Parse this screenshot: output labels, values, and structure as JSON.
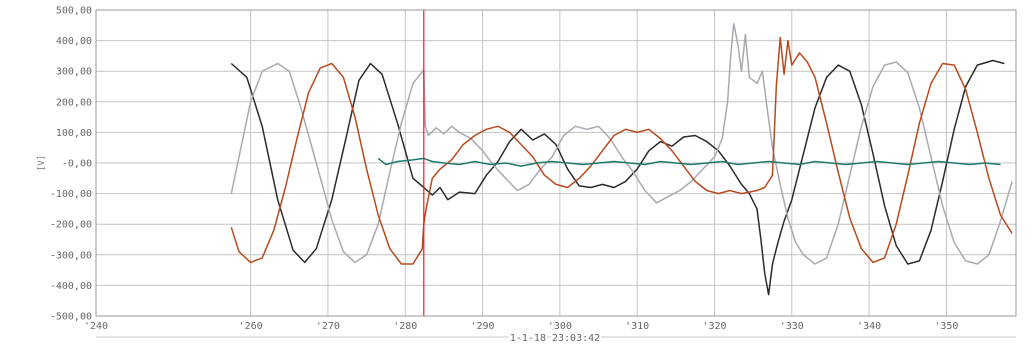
{
  "chart_data": {
    "type": "line",
    "title": "",
    "xlabel": "",
    "ylabel": "[V]",
    "timestamp": "1-1-18 23:03:42",
    "xlim": [
      240,
      359
    ],
    "ylim": [
      -500,
      500
    ],
    "grid": true,
    "x_ticks": [
      240,
      260,
      270,
      280,
      290,
      300,
      310,
      320,
      330,
      340,
      350
    ],
    "x_tick_labels": [
      "'240",
      "'260",
      "'270",
      "'280",
      "'290",
      "'300",
      "'310",
      "'320",
      "'330",
      "'340",
      "'350"
    ],
    "y_ticks": [
      500,
      400,
      300,
      200,
      100,
      0,
      -100,
      -200,
      -300,
      -400,
      -500
    ],
    "y_tick_labels": [
      "500,00",
      "400,00",
      "300,00",
      "200,00",
      "100,00",
      "-0,00",
      "-100,00",
      "-200,00",
      "-300,00",
      "-400,00",
      "-500,00"
    ],
    "cursor_x": 282.4,
    "colors": {
      "cursor": "#e02020",
      "grid": "#c4c4c4",
      "axis": "#909090",
      "background": "#ffffff"
    },
    "series": [
      {
        "color": "#2b2b2b",
        "points": [
          [
            257.5,
            325
          ],
          [
            259.5,
            280
          ],
          [
            261.5,
            120
          ],
          [
            263.5,
            -120
          ],
          [
            265.5,
            -285
          ],
          [
            267,
            -325
          ],
          [
            268.5,
            -280
          ],
          [
            270.5,
            -120
          ],
          [
            272.5,
            100
          ],
          [
            274,
            270
          ],
          [
            275.5,
            325
          ],
          [
            277,
            290
          ],
          [
            279,
            130
          ],
          [
            281,
            -50
          ],
          [
            282.4,
            -80
          ],
          [
            283.5,
            -105
          ],
          [
            284.5,
            -80
          ],
          [
            285.5,
            -120
          ],
          [
            287,
            -95
          ],
          [
            289,
            -100
          ],
          [
            290.5,
            -40
          ],
          [
            292,
            5
          ],
          [
            293.5,
            70
          ],
          [
            295,
            110
          ],
          [
            296.5,
            75
          ],
          [
            298,
            95
          ],
          [
            299.5,
            60
          ],
          [
            301,
            -20
          ],
          [
            302.5,
            -75
          ],
          [
            304,
            -80
          ],
          [
            305.5,
            -70
          ],
          [
            307,
            -80
          ],
          [
            308.5,
            -60
          ],
          [
            310,
            -20
          ],
          [
            311.5,
            40
          ],
          [
            313,
            70
          ],
          [
            314.5,
            55
          ],
          [
            316,
            85
          ],
          [
            317.5,
            90
          ],
          [
            319,
            70
          ],
          [
            320.5,
            40
          ],
          [
            322,
            -10
          ],
          [
            323.5,
            -70
          ],
          [
            324.5,
            -100
          ],
          [
            325.5,
            -150
          ],
          [
            326,
            -250
          ],
          [
            326.5,
            -360
          ],
          [
            327,
            -430
          ],
          [
            327.5,
            -330
          ],
          [
            328.2,
            -260
          ],
          [
            329,
            -190
          ],
          [
            330,
            -120
          ],
          [
            331.5,
            30
          ],
          [
            333,
            180
          ],
          [
            334.5,
            280
          ],
          [
            336,
            320
          ],
          [
            337.5,
            300
          ],
          [
            339,
            190
          ],
          [
            340.5,
            30
          ],
          [
            342,
            -140
          ],
          [
            343.5,
            -270
          ],
          [
            345,
            -330
          ],
          [
            346.5,
            -320
          ],
          [
            348,
            -220
          ],
          [
            349.5,
            -60
          ],
          [
            351,
            110
          ],
          [
            352.5,
            250
          ],
          [
            354,
            320
          ],
          [
            356,
            335
          ],
          [
            357.5,
            325
          ]
        ]
      },
      {
        "color": "#a9a9b3",
        "points": [
          [
            257.5,
            -100
          ],
          [
            258.5,
            20
          ],
          [
            260,
            200
          ],
          [
            261.5,
            300
          ],
          [
            263.5,
            325
          ],
          [
            265,
            300
          ],
          [
            266.5,
            180
          ],
          [
            268.5,
            0
          ],
          [
            270.5,
            -185
          ],
          [
            272,
            -290
          ],
          [
            273.5,
            -325
          ],
          [
            275,
            -300
          ],
          [
            276.5,
            -200
          ],
          [
            278,
            -30
          ],
          [
            279.5,
            130
          ],
          [
            281,
            260
          ],
          [
            282.4,
            305
          ],
          [
            282.6,
            120
          ],
          [
            283,
            90
          ],
          [
            284,
            115
          ],
          [
            285,
            95
          ],
          [
            286,
            120
          ],
          [
            287,
            100
          ],
          [
            288.5,
            80
          ],
          [
            290,
            40
          ],
          [
            291.5,
            -10
          ],
          [
            293,
            -50
          ],
          [
            294.5,
            -90
          ],
          [
            296,
            -70
          ],
          [
            297.5,
            -20
          ],
          [
            299,
            20
          ],
          [
            300.5,
            90
          ],
          [
            302,
            120
          ],
          [
            303.5,
            110
          ],
          [
            305,
            120
          ],
          [
            306.5,
            80
          ],
          [
            308,
            20
          ],
          [
            309.5,
            -30
          ],
          [
            311,
            -90
          ],
          [
            312.5,
            -130
          ],
          [
            314,
            -110
          ],
          [
            315.5,
            -90
          ],
          [
            317,
            -60
          ],
          [
            318.5,
            -20
          ],
          [
            320,
            20
          ],
          [
            321,
            80
          ],
          [
            321.7,
            200
          ],
          [
            322.1,
            350
          ],
          [
            322.5,
            455
          ],
          [
            323,
            390
          ],
          [
            323.5,
            300
          ],
          [
            324,
            420
          ],
          [
            324.5,
            280
          ],
          [
            325.5,
            260
          ],
          [
            326.2,
            300
          ],
          [
            326.8,
            180
          ],
          [
            327.5,
            50
          ],
          [
            328.5,
            -70
          ],
          [
            329.5,
            -180
          ],
          [
            330.5,
            -260
          ],
          [
            331.5,
            -300
          ],
          [
            333,
            -330
          ],
          [
            334.5,
            -310
          ],
          [
            336,
            -200
          ],
          [
            337.5,
            -40
          ],
          [
            339,
            120
          ],
          [
            340.5,
            250
          ],
          [
            342,
            320
          ],
          [
            343.5,
            330
          ],
          [
            345,
            295
          ],
          [
            346.5,
            180
          ],
          [
            348,
            20
          ],
          [
            349.5,
            -140
          ],
          [
            351,
            -260
          ],
          [
            352.5,
            -320
          ],
          [
            354,
            -330
          ],
          [
            355.5,
            -300
          ],
          [
            357,
            -190
          ],
          [
            358.5,
            -60
          ]
        ]
      },
      {
        "color": "#b84a1d",
        "points": [
          [
            257.5,
            -210
          ],
          [
            258.5,
            -290
          ],
          [
            260,
            -325
          ],
          [
            261.5,
            -310
          ],
          [
            263,
            -220
          ],
          [
            264.5,
            -80
          ],
          [
            266,
            80
          ],
          [
            267.5,
            230
          ],
          [
            269,
            310
          ],
          [
            270.5,
            325
          ],
          [
            272,
            280
          ],
          [
            273.5,
            150
          ],
          [
            275,
            -20
          ],
          [
            276.5,
            -170
          ],
          [
            278,
            -280
          ],
          [
            279.5,
            -330
          ],
          [
            281,
            -330
          ],
          [
            282.2,
            -280
          ],
          [
            282.4,
            -200
          ],
          [
            282.7,
            -150
          ],
          [
            283.5,
            -50
          ],
          [
            284.5,
            -20
          ],
          [
            286,
            10
          ],
          [
            287.5,
            60
          ],
          [
            289,
            90
          ],
          [
            290.5,
            110
          ],
          [
            292,
            120
          ],
          [
            293.5,
            100
          ],
          [
            295,
            60
          ],
          [
            296.5,
            20
          ],
          [
            298,
            -40
          ],
          [
            299.5,
            -70
          ],
          [
            301,
            -80
          ],
          [
            302.5,
            -50
          ],
          [
            304,
            -10
          ],
          [
            305.5,
            40
          ],
          [
            307,
            90
          ],
          [
            308.5,
            110
          ],
          [
            310,
            100
          ],
          [
            311.5,
            110
          ],
          [
            313,
            80
          ],
          [
            314.5,
            40
          ],
          [
            316,
            -10
          ],
          [
            317.5,
            -60
          ],
          [
            319,
            -90
          ],
          [
            320.5,
            -100
          ],
          [
            322,
            -90
          ],
          [
            323.5,
            -100
          ],
          [
            324.5,
            -95
          ],
          [
            325.5,
            -90
          ],
          [
            326.5,
            -80
          ],
          [
            327.5,
            -40
          ],
          [
            328,
            250
          ],
          [
            328.5,
            410
          ],
          [
            329,
            290
          ],
          [
            329.5,
            400
          ],
          [
            330,
            320
          ],
          [
            331,
            360
          ],
          [
            332,
            330
          ],
          [
            333,
            280
          ],
          [
            334.5,
            130
          ],
          [
            336,
            -30
          ],
          [
            337.5,
            -180
          ],
          [
            339,
            -280
          ],
          [
            340.5,
            -325
          ],
          [
            342,
            -310
          ],
          [
            343.5,
            -200
          ],
          [
            345,
            -40
          ],
          [
            346.5,
            130
          ],
          [
            348,
            260
          ],
          [
            349.5,
            325
          ],
          [
            351,
            320
          ],
          [
            352.5,
            240
          ],
          [
            354,
            100
          ],
          [
            355.5,
            -50
          ],
          [
            357,
            -170
          ],
          [
            358.5,
            -230
          ]
        ]
      },
      {
        "color": "#1e7a6a",
        "points": [
          [
            276.5,
            15
          ],
          [
            277.5,
            -5
          ],
          [
            279,
            5
          ],
          [
            281,
            10
          ],
          [
            282.4,
            15
          ],
          [
            283.5,
            5
          ],
          [
            285,
            0
          ],
          [
            287,
            -5
          ],
          [
            289,
            5
          ],
          [
            291,
            -5
          ],
          [
            293,
            0
          ],
          [
            295,
            -10
          ],
          [
            297,
            0
          ],
          [
            299,
            5
          ],
          [
            301,
            0
          ],
          [
            303,
            -5
          ],
          [
            305,
            0
          ],
          [
            307,
            5
          ],
          [
            309,
            0
          ],
          [
            311,
            -5
          ],
          [
            313,
            5
          ],
          [
            315,
            0
          ],
          [
            317,
            -5
          ],
          [
            319,
            0
          ],
          [
            321,
            5
          ],
          [
            323,
            -5
          ],
          [
            325,
            0
          ],
          [
            327,
            5
          ],
          [
            329,
            0
          ],
          [
            331,
            -5
          ],
          [
            333,
            5
          ],
          [
            335,
            0
          ],
          [
            337,
            -5
          ],
          [
            339,
            0
          ],
          [
            341,
            5
          ],
          [
            343,
            0
          ],
          [
            345,
            -5
          ],
          [
            347,
            0
          ],
          [
            349,
            5
          ],
          [
            351,
            0
          ],
          [
            353,
            -5
          ],
          [
            355,
            0
          ],
          [
            357,
            -5
          ]
        ]
      }
    ]
  }
}
